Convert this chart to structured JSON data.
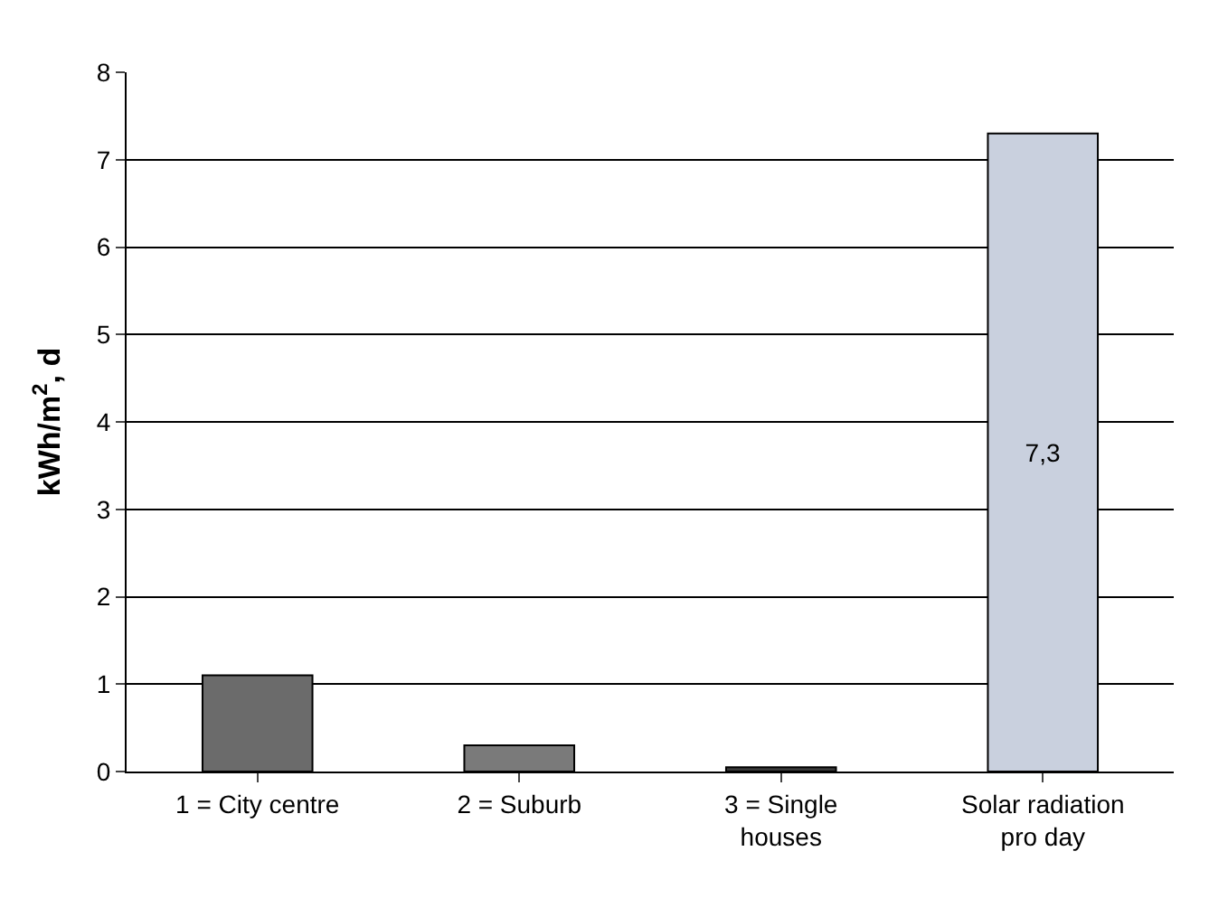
{
  "chart_data": {
    "type": "bar",
    "ylabel": "kWh/m$^{2}$, d",
    "categories": [
      "1 = City centre",
      "2 = Suburb",
      "3 = Single houses",
      "Solar radiation pro day"
    ],
    "values": [
      1.1,
      0.3,
      0.05,
      7.3
    ],
    "colors": [
      "#6b6b6b",
      "#7a7a7a",
      "#3a3a3a",
      "#c9d0de"
    ],
    "value_labels": [
      null,
      null,
      null,
      "7,3"
    ],
    "ylim": [
      0,
      8
    ],
    "yticks": [
      0,
      1,
      2,
      3,
      4,
      5,
      6,
      7,
      8
    ],
    "grid": "y"
  }
}
